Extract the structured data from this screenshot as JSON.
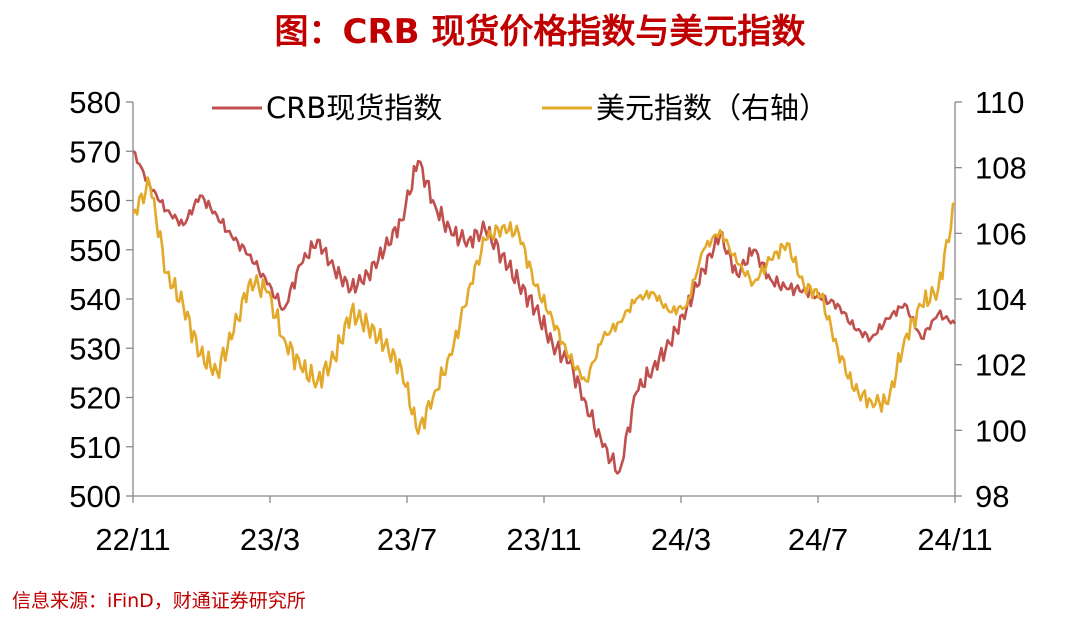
{
  "title": "图：CRB 现货价格指数与美元指数",
  "source": "信息来源：iFinD，财通证券研究所",
  "chart_data": {
    "type": "line",
    "x_ticks": [
      "22/11",
      "23/3",
      "23/7",
      "23/11",
      "24/3",
      "24/7",
      "24/11"
    ],
    "y_left": {
      "min": 500,
      "max": 580,
      "ticks": [
        500,
        510,
        520,
        530,
        540,
        550,
        560,
        570,
        580
      ]
    },
    "y_right": {
      "min": 98,
      "max": 110,
      "ticks": [
        98,
        100,
        102,
        104,
        106,
        108,
        110
      ]
    },
    "grid": false,
    "legend_position": "top",
    "series": [
      {
        "name": "CRB现货指数",
        "axis": "left",
        "color": "#c0504d",
        "values": [
          [
            "22/11",
            570
          ],
          [
            "22/11",
            563
          ],
          [
            "22/12",
            558
          ],
          [
            "22/12",
            555
          ],
          [
            "23/1",
            561
          ],
          [
            "23/1",
            557
          ],
          [
            "23/2",
            552
          ],
          [
            "23/2",
            549
          ],
          [
            "23/3",
            543
          ],
          [
            "23/3",
            538
          ],
          [
            "23/4",
            547
          ],
          [
            "23/4",
            552
          ],
          [
            "23/5",
            546
          ],
          [
            "23/5",
            542
          ],
          [
            "23/6",
            545
          ],
          [
            "23/6",
            550
          ],
          [
            "23/7",
            556
          ],
          [
            "23/7",
            568
          ],
          [
            "23/8",
            559
          ],
          [
            "23/8",
            553
          ],
          [
            "23/9",
            552
          ],
          [
            "23/9",
            554
          ],
          [
            "23/10",
            549
          ],
          [
            "23/10",
            543
          ],
          [
            "23/11",
            538
          ],
          [
            "23/11",
            531
          ],
          [
            "23/12",
            527
          ],
          [
            "23/12",
            519
          ],
          [
            "24/1",
            510
          ],
          [
            "24/1",
            505
          ],
          [
            "24/2",
            521
          ],
          [
            "24/2",
            526
          ],
          [
            "24/3",
            531
          ],
          [
            "24/3",
            538
          ],
          [
            "24/4",
            546
          ],
          [
            "24/4",
            553
          ],
          [
            "24/5",
            545
          ],
          [
            "24/5",
            550
          ],
          [
            "24/6",
            544
          ],
          [
            "24/6",
            542
          ],
          [
            "24/7",
            542
          ],
          [
            "24/7",
            540
          ],
          [
            "24/8",
            539
          ],
          [
            "24/8",
            534
          ],
          [
            "24/9",
            532
          ],
          [
            "24/9",
            536
          ],
          [
            "24/10",
            539
          ],
          [
            "24/10",
            532
          ],
          [
            "24/11",
            537
          ],
          [
            "24/11",
            535
          ]
        ]
      },
      {
        "name": "美元指数（右轴）",
        "axis": "right",
        "color": "#e3a92a",
        "values": [
          [
            "22/11",
            106.6
          ],
          [
            "22/11",
            107.5
          ],
          [
            "22/12",
            104.8
          ],
          [
            "22/12",
            103.8
          ],
          [
            "23/1",
            102.3
          ],
          [
            "23/1",
            101.8
          ],
          [
            "23/2",
            103.0
          ],
          [
            "23/2",
            104.6
          ],
          [
            "23/3",
            104.2
          ],
          [
            "23/3",
            102.8
          ],
          [
            "23/4",
            101.9
          ],
          [
            "23/4",
            101.5
          ],
          [
            "23/5",
            102.2
          ],
          [
            "23/5",
            103.6
          ],
          [
            "23/6",
            103.2
          ],
          [
            "23/6",
            102.6
          ],
          [
            "23/7",
            101.9
          ],
          [
            "23/7",
            99.9
          ],
          [
            "23/8",
            101.2
          ],
          [
            "23/8",
            102.3
          ],
          [
            "23/9",
            104.3
          ],
          [
            "23/9",
            105.8
          ],
          [
            "23/10",
            106.2
          ],
          [
            "23/10",
            106.0
          ],
          [
            "23/11",
            104.4
          ],
          [
            "23/11",
            103.4
          ],
          [
            "23/12",
            102.2
          ],
          [
            "23/12",
            101.5
          ],
          [
            "24/1",
            102.8
          ],
          [
            "24/1",
            103.3
          ],
          [
            "24/2",
            104.0
          ],
          [
            "24/2",
            104.2
          ],
          [
            "24/3",
            103.6
          ],
          [
            "24/3",
            103.8
          ],
          [
            "24/4",
            105.5
          ],
          [
            "24/4",
            106.1
          ],
          [
            "24/5",
            105.1
          ],
          [
            "24/5",
            104.5
          ],
          [
            "24/6",
            105.2
          ],
          [
            "24/6",
            105.7
          ],
          [
            "24/7",
            104.4
          ],
          [
            "24/7",
            104.1
          ],
          [
            "24/8",
            102.5
          ],
          [
            "24/8",
            101.2
          ],
          [
            "24/9",
            100.9
          ],
          [
            "24/9",
            100.8
          ],
          [
            "24/10",
            102.8
          ],
          [
            "24/10",
            103.8
          ],
          [
            "24/11",
            104.3
          ],
          [
            "24/11",
            106.9
          ]
        ]
      }
    ]
  }
}
